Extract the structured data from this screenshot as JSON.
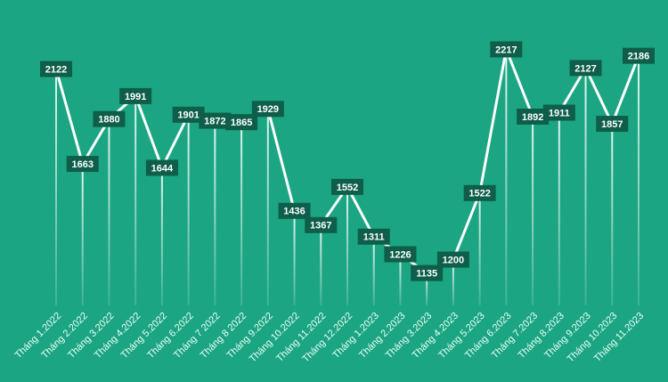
{
  "chart_data": {
    "type": "line",
    "categories": [
      "Tháng 1.2022",
      "Tháng 2.2022",
      "Tháng 3.2022",
      "Tháng 4.2022",
      "Tháng 5.2022",
      "Tháng 6.2022",
      "Tháng 7 2022",
      "Tháng 8 2022",
      "Tháng 9.2022",
      "Tháng 10.2022",
      "Tháng 11.2022",
      "Tháng 12.2022",
      "Tháng 1.2023",
      "Tháng 2.2023",
      "Tháng 3.2023",
      "Tháng 4.2023",
      "Tháng 5.2023",
      "Tháng 6.2023",
      "Tháng 7.2023",
      "Tháng 8.2023",
      "Tháng 9.2023",
      "Tháng 10.2023",
      "Tháng 11.2023"
    ],
    "values": [
      2122,
      1663,
      1880,
      1991,
      1644,
      1901,
      1872,
      1865,
      1929,
      1436,
      1367,
      1552,
      1311,
      1226,
      1135,
      1200,
      1522,
      2217,
      1892,
      1911,
      2127,
      1857,
      2186
    ],
    "color": "#ffffff",
    "label_color": "#0e5e4a",
    "ylim": [
      1000,
      2400
    ]
  }
}
